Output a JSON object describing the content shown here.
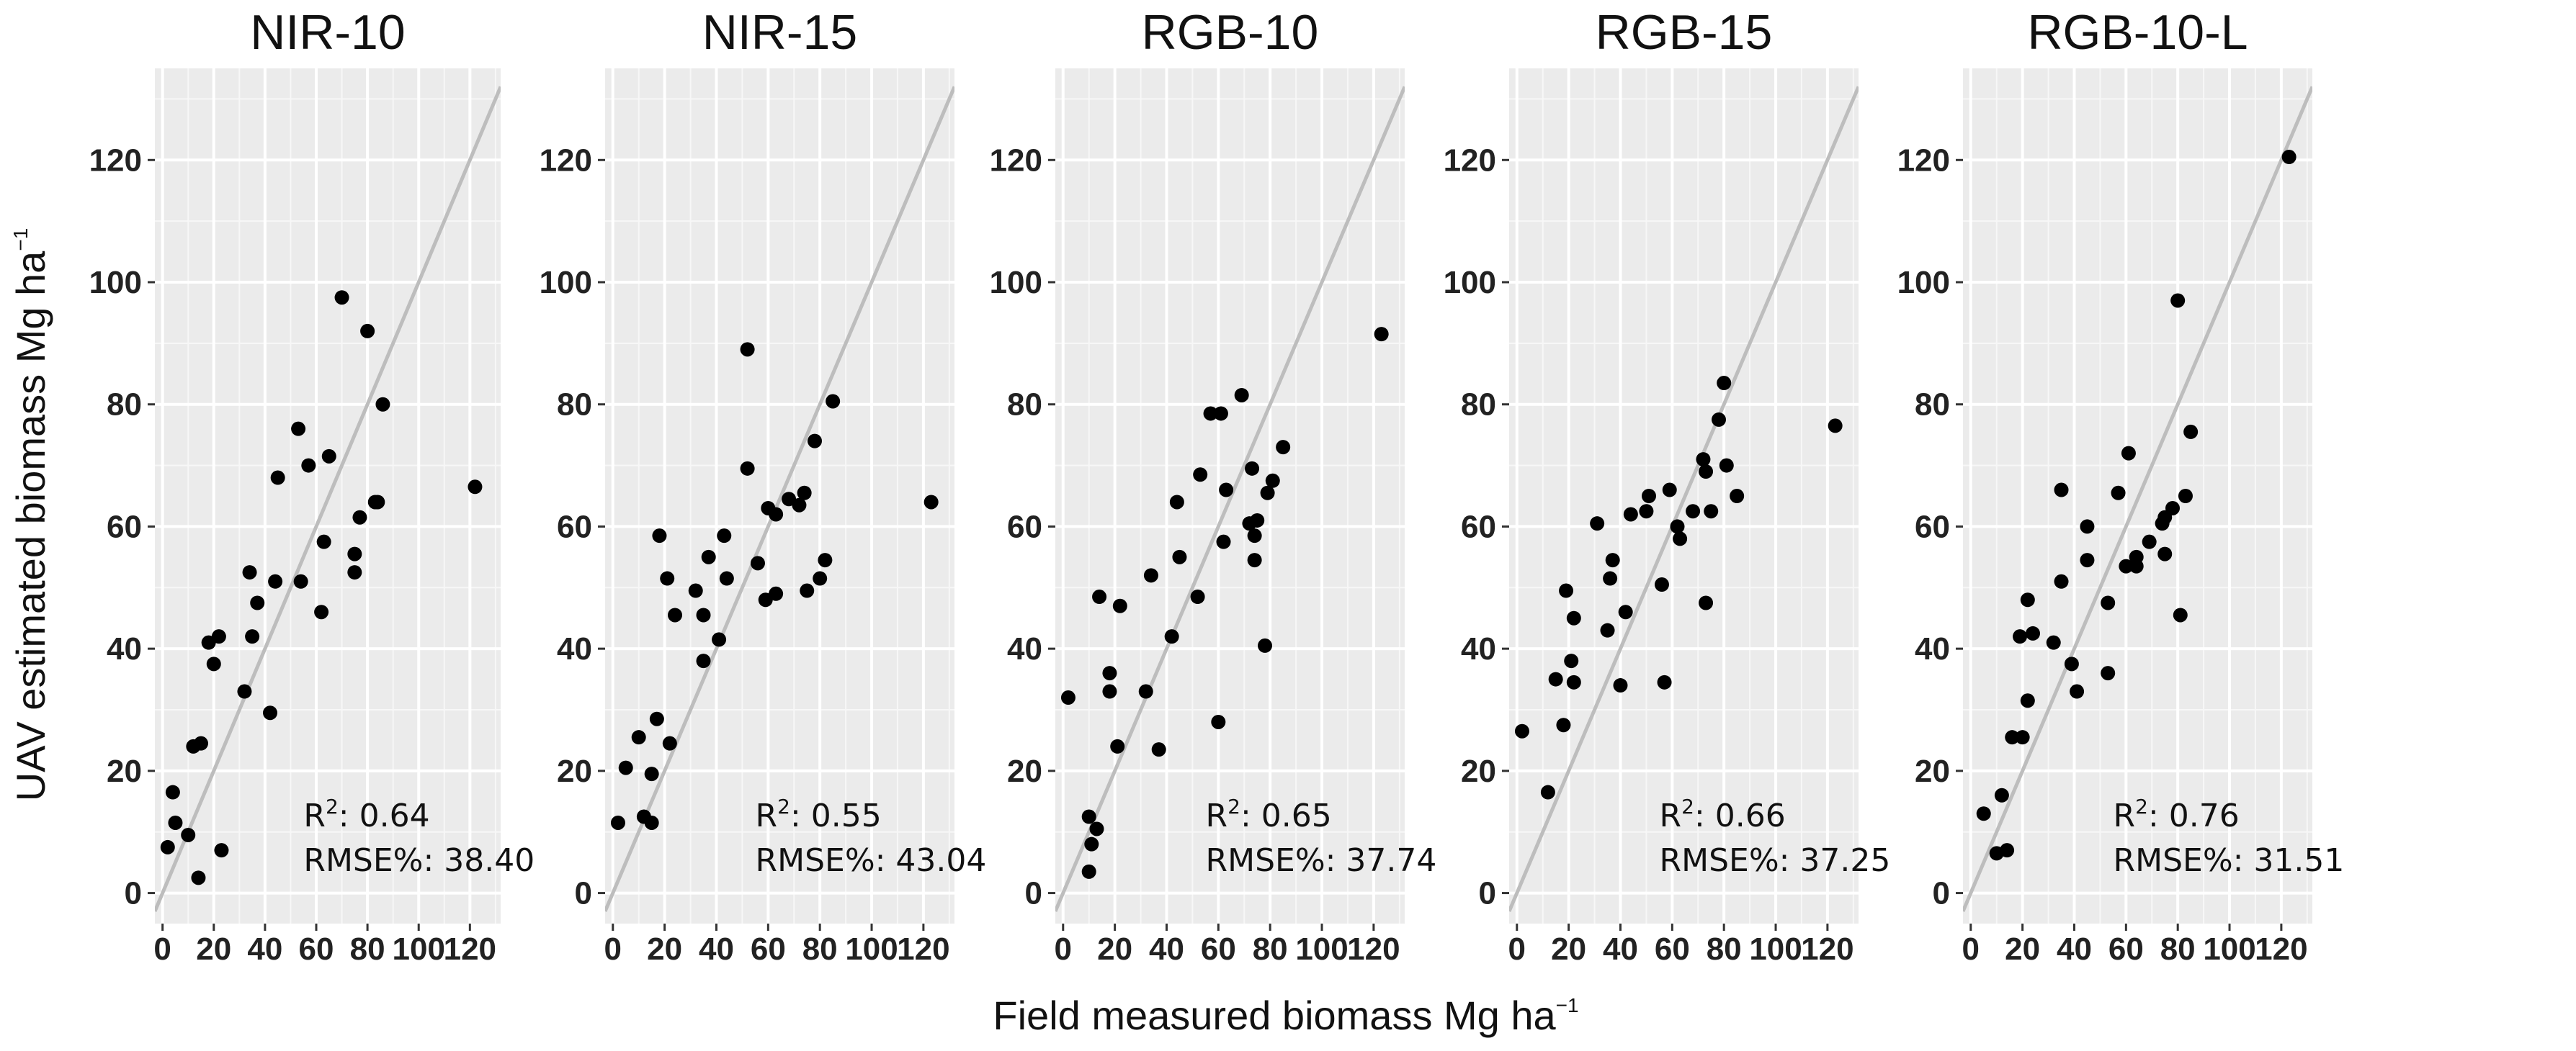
{
  "chart_data": {
    "type": "scatter",
    "xlabel": "Field measured biomass Mg ha",
    "ylabel": "UAV estimated biomass Mg ha",
    "unit_exponent": "−1",
    "xlim": [
      -3,
      132
    ],
    "ylim": [
      -5,
      135
    ],
    "x_ticks": [
      0,
      20,
      40,
      60,
      80,
      100,
      120
    ],
    "y_ticks": [
      0,
      20,
      40,
      60,
      80,
      100,
      120
    ],
    "reference_line": "1:1",
    "grid": true,
    "panels": [
      {
        "title": "NIR-10",
        "r2_label": "R",
        "r2_exp": "2",
        "r2_value": ": 0.64",
        "rmse_text": "RMSE%: 38.40",
        "points": [
          [
            2,
            7.5
          ],
          [
            4,
            16.5
          ],
          [
            5,
            11.5
          ],
          [
            10,
            9.5
          ],
          [
            12,
            24
          ],
          [
            14,
            2.5
          ],
          [
            15,
            24.5
          ],
          [
            18,
            41
          ],
          [
            20,
            37.5
          ],
          [
            22,
            42
          ],
          [
            23,
            7
          ],
          [
            32,
            33
          ],
          [
            35,
            42
          ],
          [
            34,
            52.5
          ],
          [
            37,
            47.5
          ],
          [
            42,
            29.5
          ],
          [
            44,
            51
          ],
          [
            45,
            68
          ],
          [
            53,
            76
          ],
          [
            54,
            51
          ],
          [
            57,
            70
          ],
          [
            62,
            46
          ],
          [
            63,
            57.5
          ],
          [
            65,
            71.5
          ],
          [
            70,
            97.5
          ],
          [
            75,
            52.5
          ],
          [
            75,
            55.5
          ],
          [
            77,
            61.5
          ],
          [
            80,
            92
          ],
          [
            83,
            64
          ],
          [
            84,
            64
          ],
          [
            86,
            80
          ],
          [
            122,
            66.5
          ]
        ]
      },
      {
        "title": "NIR-15",
        "r2_label": "R",
        "r2_exp": "2",
        "r2_value": ": 0.55",
        "rmse_text": "RMSE%: 43.04",
        "points": [
          [
            2,
            11.5
          ],
          [
            5,
            20.5
          ],
          [
            10,
            25.5
          ],
          [
            12,
            12.5
          ],
          [
            15,
            11.5
          ],
          [
            15,
            19.5
          ],
          [
            17,
            28.5
          ],
          [
            18,
            58.5
          ],
          [
            21,
            51.5
          ],
          [
            22,
            24.5
          ],
          [
            24,
            45.5
          ],
          [
            32,
            49.5
          ],
          [
            35,
            38
          ],
          [
            35,
            45.5
          ],
          [
            37,
            55
          ],
          [
            41,
            41.5
          ],
          [
            43,
            58.5
          ],
          [
            44,
            51.5
          ],
          [
            52,
            89
          ],
          [
            52,
            69.5
          ],
          [
            56,
            54
          ],
          [
            59,
            48
          ],
          [
            60,
            63
          ],
          [
            63,
            49
          ],
          [
            63,
            62
          ],
          [
            68,
            64.5
          ],
          [
            72,
            63.5
          ],
          [
            74,
            65.5
          ],
          [
            75,
            49.5
          ],
          [
            78,
            74
          ],
          [
            80,
            51.5
          ],
          [
            82,
            54.5
          ],
          [
            85,
            80.5
          ],
          [
            123,
            64
          ]
        ]
      },
      {
        "title": "RGB-10",
        "r2_label": "R",
        "r2_exp": "2",
        "r2_value": ": 0.65",
        "rmse_text": "RMSE%: 37.74",
        "points": [
          [
            2,
            32
          ],
          [
            10,
            12.5
          ],
          [
            10,
            3.5
          ],
          [
            11,
            8
          ],
          [
            13,
            10.5
          ],
          [
            14,
            48.5
          ],
          [
            18,
            36
          ],
          [
            18,
            33
          ],
          [
            21,
            24
          ],
          [
            22,
            47
          ],
          [
            32,
            33
          ],
          [
            34,
            52
          ],
          [
            37,
            23.5
          ],
          [
            42,
            42
          ],
          [
            45,
            55
          ],
          [
            44,
            64
          ],
          [
            52,
            48.5
          ],
          [
            53,
            68.5
          ],
          [
            57,
            78.5
          ],
          [
            60,
            28
          ],
          [
            61,
            78.5
          ],
          [
            62,
            57.5
          ],
          [
            63,
            66
          ],
          [
            69,
            81.5
          ],
          [
            72,
            60.5
          ],
          [
            73,
            69.5
          ],
          [
            74,
            54.5
          ],
          [
            74,
            58.5
          ],
          [
            75,
            61
          ],
          [
            78,
            40.5
          ],
          [
            79,
            65.5
          ],
          [
            81,
            67.5
          ],
          [
            85,
            73
          ],
          [
            123,
            91.5
          ]
        ]
      },
      {
        "title": "RGB-15",
        "r2_label": "R",
        "r2_exp": "2",
        "r2_value": ": 0.66",
        "rmse_text": "RMSE%: 37.25",
        "points": [
          [
            2,
            26.5
          ],
          [
            12,
            16.5
          ],
          [
            15,
            35
          ],
          [
            18,
            27.5
          ],
          [
            19,
            49.5
          ],
          [
            21,
            38
          ],
          [
            22,
            45
          ],
          [
            22,
            34.5
          ],
          [
            31,
            60.5
          ],
          [
            35,
            43
          ],
          [
            36,
            51.5
          ],
          [
            37,
            54.5
          ],
          [
            40,
            34
          ],
          [
            42,
            46
          ],
          [
            44,
            62
          ],
          [
            50,
            62.5
          ],
          [
            51,
            65
          ],
          [
            56,
            50.5
          ],
          [
            57,
            34.5
          ],
          [
            59,
            66
          ],
          [
            63,
            58
          ],
          [
            62,
            60
          ],
          [
            68,
            62.5
          ],
          [
            72,
            71
          ],
          [
            73,
            47.5
          ],
          [
            73,
            69
          ],
          [
            75,
            62.5
          ],
          [
            78,
            77.5
          ],
          [
            80,
            83.5
          ],
          [
            81,
            70
          ],
          [
            85,
            65
          ],
          [
            123,
            76.5
          ]
        ]
      },
      {
        "title": "RGB-10-L",
        "r2_label": "R",
        "r2_exp": "2",
        "r2_value": ": 0.76",
        "rmse_text": "RMSE%: 31.51",
        "points": [
          [
            5,
            13
          ],
          [
            10,
            6.5
          ],
          [
            12,
            16
          ],
          [
            14,
            7
          ],
          [
            16,
            25.5
          ],
          [
            19,
            42
          ],
          [
            20,
            25.5
          ],
          [
            22,
            48
          ],
          [
            22,
            31.5
          ],
          [
            24,
            42.5
          ],
          [
            32,
            41
          ],
          [
            35,
            51
          ],
          [
            35,
            66
          ],
          [
            39,
            37.5
          ],
          [
            41,
            33
          ],
          [
            45,
            60
          ],
          [
            45,
            54.5
          ],
          [
            53,
            47.5
          ],
          [
            53,
            36
          ],
          [
            57,
            65.5
          ],
          [
            60,
            53.5
          ],
          [
            61,
            72
          ],
          [
            64,
            55
          ],
          [
            64,
            53.5
          ],
          [
            69,
            57.5
          ],
          [
            74,
            60.5
          ],
          [
            75,
            55.5
          ],
          [
            75,
            61.5
          ],
          [
            78,
            63
          ],
          [
            80,
            97
          ],
          [
            81,
            45.5
          ],
          [
            83,
            65
          ],
          [
            85,
            75.5
          ],
          [
            123,
            120.5
          ]
        ]
      }
    ]
  }
}
